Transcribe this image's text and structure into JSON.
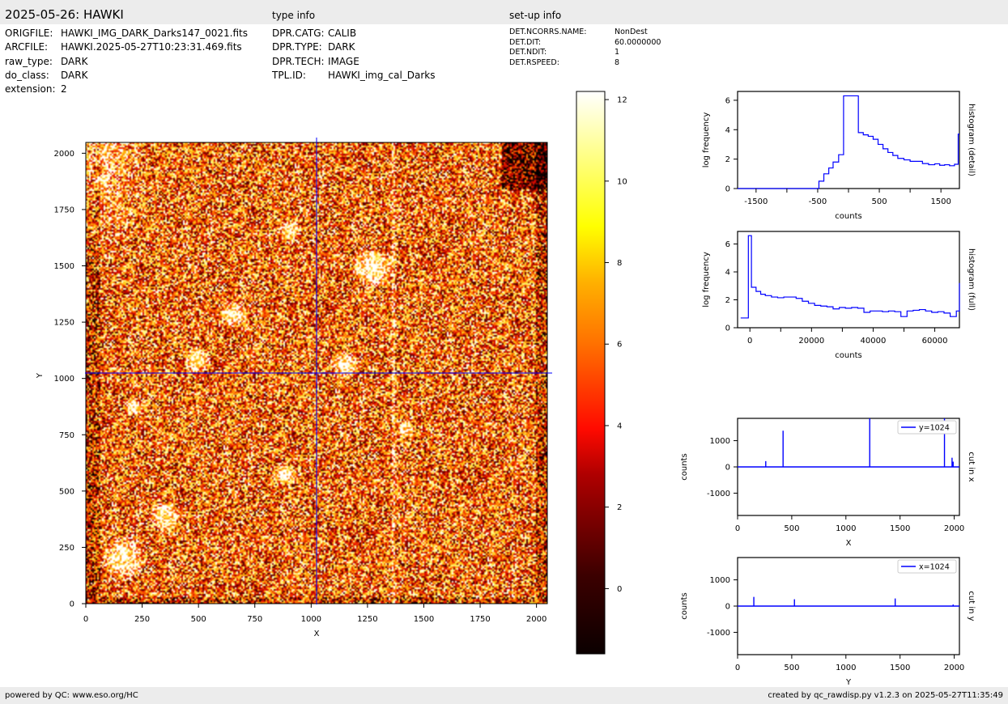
{
  "header": {
    "title": "2025-05-26: HAWKI",
    "type_info_heading": "type info",
    "setup_info_heading": "set-up info"
  },
  "file_info": [
    {
      "key": "ORIGFILE:",
      "value": "HAWKI_IMG_DARK_Darks147_0021.fits"
    },
    {
      "key": "ARCFILE:",
      "value": "HAWKI.2025-05-27T10:23:31.469.fits"
    },
    {
      "key": "raw_type:",
      "value": "DARK"
    },
    {
      "key": "do_class:",
      "value": "DARK"
    },
    {
      "key": "extension:",
      "value": "2"
    }
  ],
  "type_info": [
    {
      "key": "DPR.CATG:",
      "value": "CALIB"
    },
    {
      "key": "DPR.TYPE:",
      "value": "DARK"
    },
    {
      "key": "DPR.TECH:",
      "value": "IMAGE"
    },
    {
      "key": "TPL.ID:",
      "value": "HAWKI_img_cal_Darks"
    }
  ],
  "setup_info": [
    {
      "key": "DET.NCORRS.NAME:",
      "value": "NonDest"
    },
    {
      "key": "DET.DIT:",
      "value": "60.0000000"
    },
    {
      "key": "DET.NDIT:",
      "value": "1"
    },
    {
      "key": "DET.RSPEED:",
      "value": "8"
    }
  ],
  "footer": {
    "left": "powered by QC: www.eso.org/HC",
    "right": "created by qc_rawdisp.py v1.2.3 on 2025-05-27T11:35:49"
  },
  "chart_data": [
    {
      "type": "heatmap",
      "name": "detector image",
      "xlabel": "X",
      "ylabel": "Y",
      "xlim": [
        0,
        2048
      ],
      "ylim": [
        0,
        2048
      ],
      "xticks": [
        0,
        250,
        500,
        750,
        1000,
        1250,
        1500,
        1750,
        2000
      ],
      "yticks": [
        0,
        250,
        500,
        750,
        1000,
        1250,
        1500,
        1750,
        2000
      ],
      "crosshair": {
        "x": 1024,
        "y": 1024
      },
      "colormap": "hot",
      "colorbar": {
        "range": [
          -1.6,
          12.2
        ],
        "ticks": [
          0,
          2,
          4,
          6,
          8,
          10,
          12
        ]
      }
    },
    {
      "type": "line",
      "name": "histogram-detail",
      "side_label": "histogram (detail)",
      "xlabel": "counts",
      "ylabel": "log frequency",
      "xlim": [
        -1800,
        1800
      ],
      "ylim": [
        0,
        6.6
      ],
      "xticks": [
        -1500,
        -500,
        500,
        1500
      ],
      "xtick_labels": [
        "-1500",
        "-500",
        "500",
        "1500"
      ],
      "xticks_minor": [
        -1000,
        0,
        1000
      ],
      "yticks": [
        0,
        2,
        4,
        6
      ],
      "color": "#0000ff",
      "series": [
        {
          "x": [
            -1800,
            -500,
            -480,
            -400,
            -320,
            -250,
            -160,
            -80,
            0,
            160,
            240,
            320,
            400,
            480,
            560,
            640,
            720,
            800,
            900,
            1000,
            1200,
            1300,
            1400,
            1480,
            1560,
            1640,
            1720,
            1780,
            1800
          ],
          "y": [
            0,
            0,
            0.5,
            1.0,
            1.4,
            1.8,
            2.3,
            6.3,
            6.3,
            3.8,
            3.65,
            3.55,
            3.35,
            3.0,
            2.7,
            2.45,
            2.25,
            2.05,
            1.95,
            1.85,
            1.7,
            1.62,
            1.68,
            1.58,
            1.62,
            1.55,
            1.65,
            3.7,
            3.7
          ]
        }
      ]
    },
    {
      "type": "line",
      "name": "histogram-full",
      "side_label": "histogram (full)",
      "xlabel": "counts",
      "ylabel": "log frequency",
      "xlim": [
        -4000,
        68000
      ],
      "ylim": [
        0,
        6.9
      ],
      "xticks": [
        0,
        20000,
        40000,
        60000
      ],
      "xticks_minor": [
        10000,
        30000,
        50000
      ],
      "yticks": [
        0,
        2,
        4,
        6
      ],
      "color": "#0000ff",
      "series": [
        {
          "x": [
            -3000,
            -1500,
            -500,
            500,
            2000,
            3500,
            5000,
            7000,
            9000,
            11000,
            13000,
            15000,
            17000,
            19000,
            21000,
            23000,
            25000,
            27000,
            29000,
            31000,
            33000,
            35000,
            37000,
            39000,
            41000,
            43000,
            45000,
            47000,
            49000,
            51000,
            53000,
            55000,
            57000,
            59000,
            61000,
            63000,
            65000,
            67000,
            68000
          ],
          "y": [
            0.7,
            0.7,
            6.6,
            2.9,
            2.6,
            2.4,
            2.3,
            2.2,
            2.15,
            2.2,
            2.2,
            2.1,
            1.9,
            1.75,
            1.6,
            1.55,
            1.5,
            1.35,
            1.45,
            1.4,
            1.45,
            1.4,
            1.1,
            1.2,
            1.2,
            1.15,
            1.2,
            1.15,
            0.8,
            1.2,
            1.25,
            1.3,
            1.2,
            1.1,
            1.15,
            1.05,
            0.8,
            1.2,
            3.2
          ]
        }
      ]
    },
    {
      "type": "line",
      "name": "cut-in-x",
      "side_label": "cut in x",
      "xlabel": "X",
      "ylabel": "counts",
      "xlim": [
        0,
        2048
      ],
      "ylim": [
        -1850,
        1850
      ],
      "xticks": [
        0,
        500,
        1000,
        1500,
        2000
      ],
      "yticks": [
        -1000,
        0,
        1000
      ],
      "legend": "y=1024",
      "legend_position": "top-right",
      "color": "#0000ff",
      "spikes": [
        {
          "x": 260,
          "y": 220
        },
        {
          "x": 420,
          "y": 1380
        },
        {
          "x": 1220,
          "y": 1850
        },
        {
          "x": 1910,
          "y": 1850
        },
        {
          "x": 1980,
          "y": 350
        },
        {
          "x": 1990,
          "y": 200
        }
      ]
    },
    {
      "type": "line",
      "name": "cut-in-y",
      "side_label": "cut in y",
      "xlabel": "Y",
      "ylabel": "counts",
      "xlim": [
        0,
        2048
      ],
      "ylim": [
        -1850,
        1850
      ],
      "xticks": [
        0,
        500,
        1000,
        1500,
        2000
      ],
      "yticks": [
        -1000,
        0,
        1000
      ],
      "legend": "x=1024",
      "legend_position": "top-right",
      "color": "#0000ff",
      "spikes": [
        {
          "x": 150,
          "y": 350
        },
        {
          "x": 525,
          "y": 260
        },
        {
          "x": 1455,
          "y": 290
        },
        {
          "x": 1990,
          "y": 60
        }
      ]
    }
  ]
}
